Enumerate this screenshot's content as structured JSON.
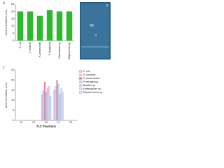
{
  "chart_data": [
    {
      "type": "bar",
      "label": "a",
      "y_label": "Zone of inhibition (mm)",
      "categories": [
        "E. coli",
        "V. cholerae",
        "K. pneumoniae",
        "P. aeruginosa",
        "Enterobacter sp.",
        "Streptococcus sp."
      ],
      "values": [
        20,
        20,
        17,
        21,
        20,
        20
      ],
      "color": "#2db82d",
      "ylim": [
        0,
        25
      ],
      "yticks": [
        0,
        5,
        10,
        15,
        20,
        25
      ]
    },
    {
      "type": "bar",
      "label": "c",
      "y_label": "Zone of inhibition (mm)",
      "x_label": "TLC Fractions",
      "categories": [
        "F1",
        "F2",
        "F3",
        "F4",
        "F5"
      ],
      "series": [
        {
          "name": "E. coli",
          "color": "#c9c9f5",
          "values": [
            0,
            0,
            13,
            15,
            0
          ]
        },
        {
          "name": "V. cholerae",
          "color": "#f5c9d8",
          "values": [
            0,
            0,
            15,
            17,
            0
          ]
        },
        {
          "name": "K. pneumoniae",
          "color": "#e98aa8",
          "values": [
            0,
            0,
            19,
            20,
            0
          ]
        },
        {
          "name": "P. aeruginosa",
          "color": "#b9d8f0",
          "values": [
            0,
            0,
            14,
            18,
            0
          ]
        },
        {
          "name": "Bacillus sp.",
          "color": "#d8c9f0",
          "values": [
            0,
            0,
            16,
            13,
            0
          ]
        },
        {
          "name": "Enterobacter sp.",
          "color": "#f0d0e8",
          "values": [
            0,
            0,
            17,
            16,
            0
          ]
        },
        {
          "name": "Streptococcus sp.",
          "color": "#c0e0f5",
          "values": [
            0,
            0,
            12,
            14,
            0
          ]
        }
      ],
      "ylim": [
        0,
        25
      ],
      "yticks": [
        0,
        5,
        10,
        15,
        20,
        25
      ],
      "legend": "right"
    }
  ],
  "image_panel": {
    "label": "b"
  }
}
